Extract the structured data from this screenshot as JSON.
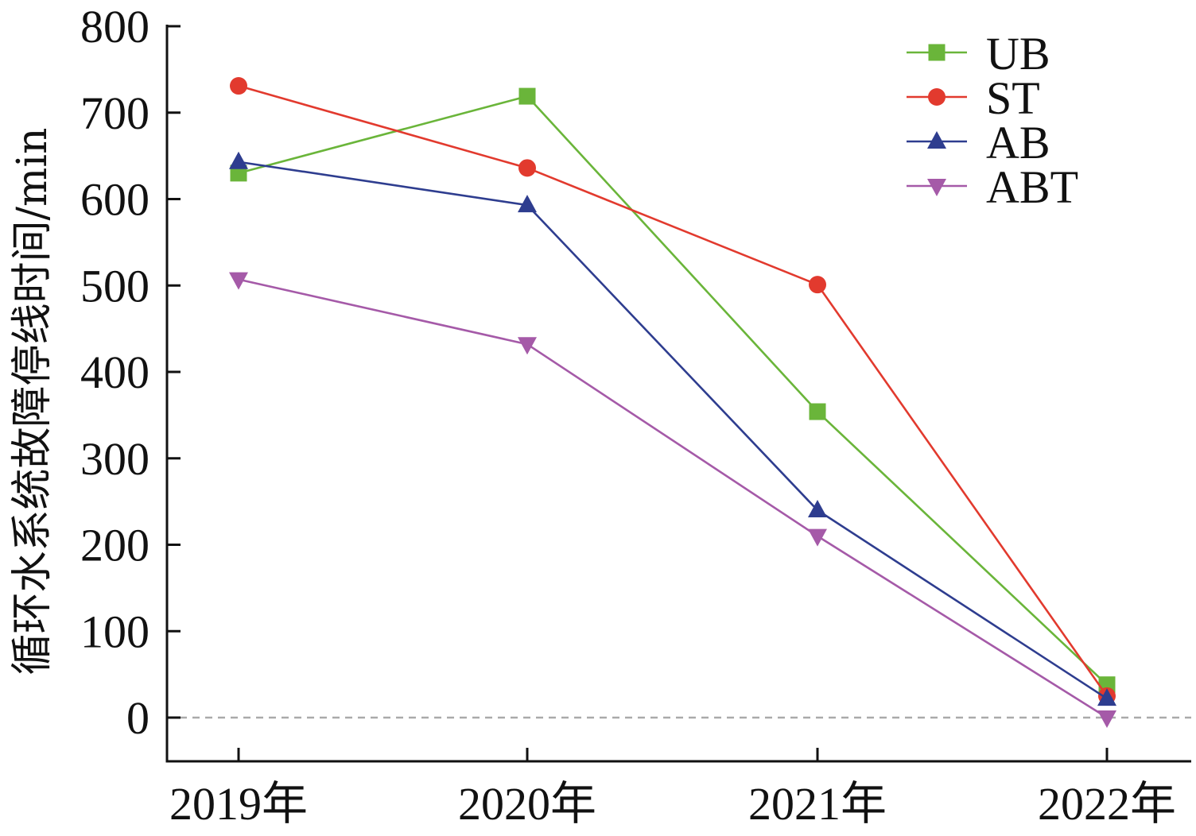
{
  "chart_data": {
    "type": "line",
    "categories": [
      "2019年",
      "2020年",
      "2021年",
      "2022年"
    ],
    "ylabel": "循环水系统故障停线时间/min",
    "xlabel": "",
    "ylim": [
      -50,
      800
    ],
    "yticks": [
      "0",
      "100",
      "200",
      "300",
      "400",
      "500",
      "600",
      "700",
      "800"
    ],
    "ytick_values": [
      0,
      100,
      200,
      300,
      400,
      500,
      600,
      700,
      800
    ],
    "zero_reference_line": true,
    "grid": false,
    "legend_position": "top-right",
    "series": [
      {
        "name": "UB",
        "values": [
          630,
          719,
          354,
          38
        ],
        "color": "#6ab53a",
        "marker": "square"
      },
      {
        "name": "ST",
        "values": [
          731,
          636,
          501,
          25
        ],
        "color": "#e23a2e",
        "marker": "circle"
      },
      {
        "name": "AB",
        "values": [
          643,
          593,
          240,
          22
        ],
        "color": "#2e3d8f",
        "marker": "triangle-up"
      },
      {
        "name": "ABT",
        "values": [
          507,
          432,
          210,
          0
        ],
        "color": "#a55aa8",
        "marker": "triangle-down"
      }
    ]
  }
}
